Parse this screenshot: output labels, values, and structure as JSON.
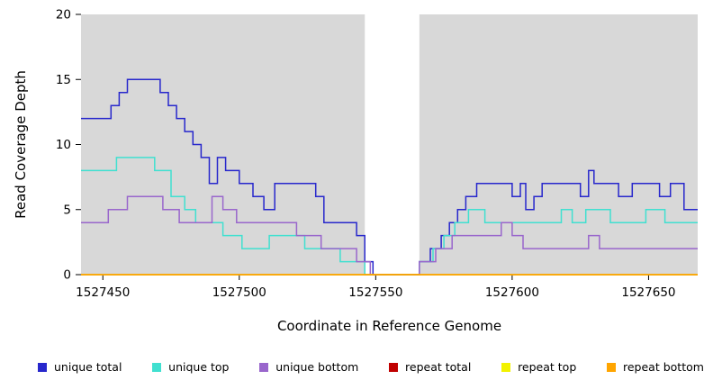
{
  "chart_data": {
    "type": "line",
    "step": true,
    "title": "",
    "xlabel": "Coordinate in Reference Genome",
    "ylabel": "Read Coverage Depth",
    "xlim": [
      1527442,
      1527668
    ],
    "ylim": [
      0,
      20
    ],
    "x_ticks": [
      1527450,
      1527500,
      1527550,
      1527600,
      1527650
    ],
    "y_ticks": [
      0,
      5,
      10,
      15,
      20
    ],
    "grid": false,
    "legend_position": "bottom",
    "plot_bg_color": "#d8d8d8",
    "gap_band": {
      "from": 1527546,
      "to": 1527566,
      "color": "#ffffff"
    },
    "series": [
      {
        "name": "unique total",
        "color": "#2727cc",
        "points": [
          [
            1527442,
            12
          ],
          [
            1527453,
            13
          ],
          [
            1527456,
            14
          ],
          [
            1527459,
            15
          ],
          [
            1527471,
            14
          ],
          [
            1527474,
            13
          ],
          [
            1527477,
            12
          ],
          [
            1527480,
            11
          ],
          [
            1527483,
            10
          ],
          [
            1527486,
            9
          ],
          [
            1527489,
            7
          ],
          [
            1527492,
            9
          ],
          [
            1527495,
            8
          ],
          [
            1527500,
            7
          ],
          [
            1527505,
            6
          ],
          [
            1527509,
            5
          ],
          [
            1527513,
            7
          ],
          [
            1527528,
            6
          ],
          [
            1527531,
            4
          ],
          [
            1527543,
            3
          ],
          [
            1527546,
            1
          ],
          [
            1527549,
            0
          ],
          [
            1527566,
            1
          ],
          [
            1527570,
            2
          ],
          [
            1527574,
            3
          ],
          [
            1527577,
            4
          ],
          [
            1527580,
            5
          ],
          [
            1527583,
            6
          ],
          [
            1527587,
            7
          ],
          [
            1527600,
            6
          ],
          [
            1527603,
            7
          ],
          [
            1527605,
            5
          ],
          [
            1527608,
            6
          ],
          [
            1527611,
            7
          ],
          [
            1527625,
            6
          ],
          [
            1527628,
            8
          ],
          [
            1527630,
            7
          ],
          [
            1527639,
            6
          ],
          [
            1527644,
            7
          ],
          [
            1527654,
            6
          ],
          [
            1527658,
            7
          ],
          [
            1527663,
            5
          ]
        ]
      },
      {
        "name": "unique top",
        "color": "#40e0d0",
        "points": [
          [
            1527442,
            8
          ],
          [
            1527455,
            9
          ],
          [
            1527469,
            8
          ],
          [
            1527475,
            6
          ],
          [
            1527480,
            5
          ],
          [
            1527484,
            4
          ],
          [
            1527494,
            3
          ],
          [
            1527501,
            2
          ],
          [
            1527511,
            3
          ],
          [
            1527524,
            2
          ],
          [
            1527537,
            1
          ],
          [
            1527546,
            0
          ],
          [
            1527566,
            1
          ],
          [
            1527571,
            2
          ],
          [
            1527575,
            3
          ],
          [
            1527579,
            4
          ],
          [
            1527584,
            5
          ],
          [
            1527590,
            4
          ],
          [
            1527618,
            5
          ],
          [
            1527622,
            4
          ],
          [
            1527627,
            5
          ],
          [
            1527636,
            4
          ],
          [
            1527649,
            5
          ],
          [
            1527656,
            4
          ]
        ]
      },
      {
        "name": "unique bottom",
        "color": "#9966cc",
        "points": [
          [
            1527442,
            4
          ],
          [
            1527452,
            5
          ],
          [
            1527459,
            6
          ],
          [
            1527472,
            5
          ],
          [
            1527478,
            4
          ],
          [
            1527490,
            6
          ],
          [
            1527494,
            5
          ],
          [
            1527499,
            4
          ],
          [
            1527521,
            3
          ],
          [
            1527530,
            2
          ],
          [
            1527543,
            1
          ],
          [
            1527548,
            0
          ],
          [
            1527566,
            1
          ],
          [
            1527572,
            2
          ],
          [
            1527578,
            3
          ],
          [
            1527596,
            4
          ],
          [
            1527600,
            3
          ],
          [
            1527604,
            2
          ],
          [
            1527628,
            3
          ],
          [
            1527632,
            2
          ]
        ]
      },
      {
        "name": "repeat total",
        "color": "#c00000",
        "points": [
          [
            1527442,
            0
          ]
        ]
      },
      {
        "name": "repeat top",
        "color": "#f2f200",
        "points": [
          [
            1527442,
            0
          ]
        ]
      },
      {
        "name": "repeat bottom",
        "color": "#ffa500",
        "points": [
          [
            1527442,
            0
          ]
        ]
      }
    ]
  }
}
